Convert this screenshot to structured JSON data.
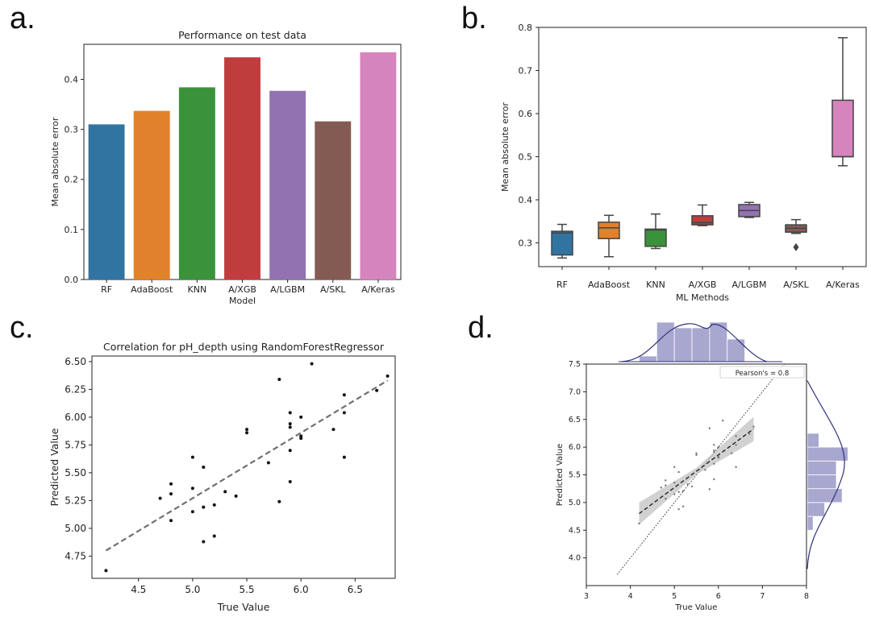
{
  "panel_labels": {
    "a": "a.",
    "b": "b.",
    "c": "c.",
    "d": "d."
  },
  "chart_data": [
    {
      "panel": "a",
      "type": "bar",
      "title": "Performance on test data",
      "xlabel": "Model",
      "ylabel": "Mean absolute error",
      "ylim": [
        0,
        0.47
      ],
      "yticks": [
        "0.0",
        "0.1",
        "0.2",
        "0.3",
        "0.4"
      ],
      "categories": [
        "RF",
        "AdaBoost",
        "KNN",
        "A/XGB",
        "A/LGBM",
        "A/SKL",
        "A/Keras"
      ],
      "values": [
        0.31,
        0.337,
        0.384,
        0.444,
        0.377,
        0.316,
        0.454
      ],
      "colors": [
        "#3274a1",
        "#e1812c",
        "#3a923a",
        "#c03d3e",
        "#9372b2",
        "#845b53",
        "#d684bd"
      ]
    },
    {
      "panel": "b",
      "type": "box",
      "xlabel": "ML Methods",
      "ylabel": "Mean absolute error",
      "ylim": [
        0.245,
        0.8
      ],
      "yticks": [
        "0.3",
        "0.4",
        "0.5",
        "0.6",
        "0.7",
        "0.8"
      ],
      "categories": [
        "RF",
        "AdaBoost",
        "KNN",
        "A/XGB",
        "A/LGBM",
        "A/SKL",
        "A/Keras"
      ],
      "boxes": [
        {
          "min": 0.265,
          "q1": 0.272,
          "median": 0.323,
          "q3": 0.327,
          "max": 0.343,
          "outliers": []
        },
        {
          "min": 0.268,
          "q1": 0.31,
          "median": 0.335,
          "q3": 0.348,
          "max": 0.364,
          "outliers": []
        },
        {
          "min": 0.287,
          "q1": 0.292,
          "median": 0.33,
          "q3": 0.332,
          "max": 0.367,
          "outliers": []
        },
        {
          "min": 0.34,
          "q1": 0.342,
          "median": 0.347,
          "q3": 0.363,
          "max": 0.388,
          "outliers": []
        },
        {
          "min": 0.359,
          "q1": 0.361,
          "median": 0.375,
          "q3": 0.389,
          "max": 0.394,
          "outliers": []
        },
        {
          "min": 0.322,
          "q1": 0.325,
          "median": 0.334,
          "q3": 0.342,
          "max": 0.354,
          "outliers": [
            0.29
          ]
        },
        {
          "min": 0.479,
          "q1": 0.5,
          "median": 0.5,
          "q3": 0.631,
          "max": 0.776,
          "outliers": []
        }
      ],
      "colors": [
        "#3274a1",
        "#e1812c",
        "#3a923a",
        "#c03d3e",
        "#9372b2",
        "#845b53",
        "#d684bd"
      ]
    },
    {
      "panel": "c",
      "type": "scatter",
      "title": "Correlation for pH_depth using RandomForestRegressor",
      "xlabel": "True Value",
      "ylabel": "Predicted Value",
      "xlim": [
        4.07,
        6.87
      ],
      "ylim": [
        4.55,
        6.55
      ],
      "xticks": [
        "4.5",
        "5.0",
        "5.5",
        "6.0",
        "6.5"
      ],
      "yticks": [
        "4.75",
        "5.00",
        "5.25",
        "5.50",
        "5.75",
        "6.00",
        "6.25",
        "6.50"
      ],
      "points": [
        [
          4.2,
          4.62
        ],
        [
          4.7,
          5.27
        ],
        [
          4.8,
          5.4
        ],
        [
          4.8,
          5.31
        ],
        [
          4.8,
          5.07
        ],
        [
          5.0,
          5.64
        ],
        [
          5.0,
          5.36
        ],
        [
          5.0,
          5.15
        ],
        [
          5.1,
          5.55
        ],
        [
          5.1,
          5.19
        ],
        [
          5.1,
          4.88
        ],
        [
          5.2,
          5.21
        ],
        [
          5.2,
          4.93
        ],
        [
          5.3,
          5.33
        ],
        [
          5.4,
          5.29
        ],
        [
          5.5,
          5.89
        ],
        [
          5.5,
          5.86
        ],
        [
          5.7,
          5.59
        ],
        [
          5.8,
          6.34
        ],
        [
          5.8,
          5.24
        ],
        [
          5.9,
          6.04
        ],
        [
          5.9,
          5.94
        ],
        [
          5.9,
          5.91
        ],
        [
          5.9,
          5.7
        ],
        [
          5.9,
          5.42
        ],
        [
          6.0,
          6.0
        ],
        [
          6.0,
          5.83
        ],
        [
          6.0,
          5.81
        ],
        [
          6.1,
          6.48
        ],
        [
          6.3,
          5.89
        ],
        [
          6.4,
          6.2
        ],
        [
          6.4,
          6.04
        ],
        [
          6.4,
          5.64
        ],
        [
          6.7,
          6.24
        ],
        [
          6.8,
          6.37
        ]
      ],
      "trend_line": [
        [
          4.2,
          4.8
        ],
        [
          6.8,
          6.33
        ]
      ]
    },
    {
      "panel": "d",
      "type": "scatter",
      "xlabel": "True Value",
      "ylabel": "Predicted Value",
      "xlim": [
        3,
        8
      ],
      "ylim": [
        3.5,
        7.5
      ],
      "xticks": [
        "3",
        "4",
        "5",
        "6",
        "7",
        "8"
      ],
      "yticks": [
        "4.0",
        "4.5",
        "5.0",
        "5.5",
        "6.0",
        "6.5",
        "7.0",
        "7.5"
      ],
      "legend": "Pearson's = 0.8",
      "points": [
        [
          4.2,
          4.62
        ],
        [
          4.7,
          5.27
        ],
        [
          4.8,
          5.4
        ],
        [
          4.8,
          5.31
        ],
        [
          4.8,
          5.07
        ],
        [
          5.0,
          5.64
        ],
        [
          5.0,
          5.36
        ],
        [
          5.0,
          5.15
        ],
        [
          5.1,
          5.55
        ],
        [
          5.1,
          5.19
        ],
        [
          5.1,
          4.88
        ],
        [
          5.2,
          5.21
        ],
        [
          5.2,
          4.93
        ],
        [
          5.3,
          5.33
        ],
        [
          5.4,
          5.29
        ],
        [
          5.5,
          5.89
        ],
        [
          5.5,
          5.86
        ],
        [
          5.7,
          5.59
        ],
        [
          5.8,
          6.34
        ],
        [
          5.8,
          5.24
        ],
        [
          5.9,
          6.04
        ],
        [
          5.9,
          5.94
        ],
        [
          5.9,
          5.91
        ],
        [
          5.9,
          5.7
        ],
        [
          5.9,
          5.42
        ],
        [
          6.0,
          6.0
        ],
        [
          6.0,
          5.83
        ],
        [
          6.0,
          5.81
        ],
        [
          6.1,
          6.48
        ],
        [
          6.3,
          5.89
        ],
        [
          6.4,
          6.2
        ],
        [
          6.4,
          6.04
        ],
        [
          6.4,
          5.64
        ],
        [
          6.7,
          6.24
        ],
        [
          6.8,
          6.37
        ]
      ],
      "regression_line": [
        [
          4.2,
          4.8
        ],
        [
          6.8,
          6.33
        ]
      ],
      "confidence_band_half_width": {
        "at_min": 0.2,
        "at_center": 0.06,
        "at_max": 0.22
      },
      "identity_line": [
        [
          3.7,
          3.7
        ],
        [
          7.5,
          7.5
        ]
      ],
      "top_hist": {
        "bins": [
          4.2,
          4.6,
          5.0,
          5.4,
          5.8,
          6.2,
          6.6
        ],
        "heights": [
          1,
          7,
          6,
          6,
          7,
          4
        ]
      },
      "right_hist": {
        "bins": [
          4.5,
          4.75,
          5.0,
          5.25,
          5.5,
          5.75,
          6.0,
          6.25
        ],
        "heights": [
          1,
          3,
          6,
          5,
          5,
          7,
          2
        ]
      }
    }
  ]
}
